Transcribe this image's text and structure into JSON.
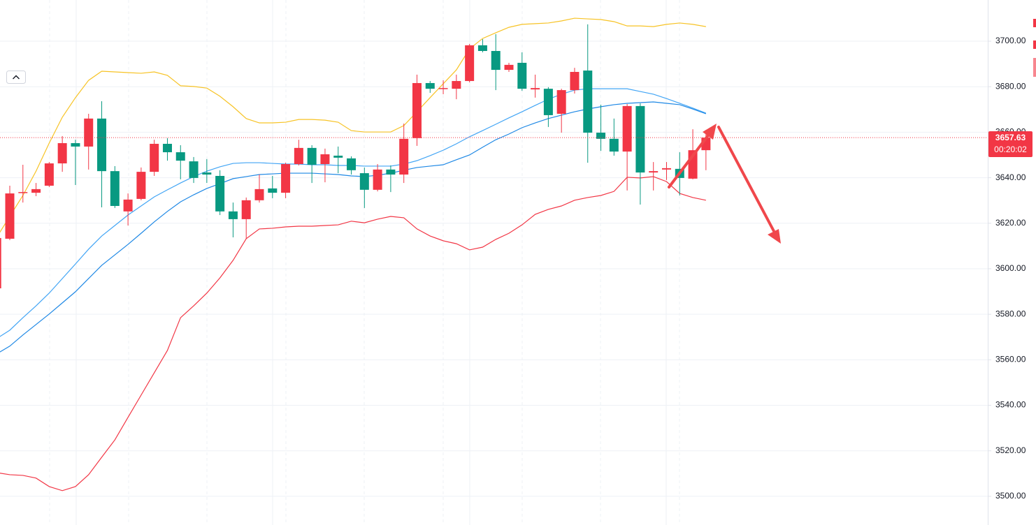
{
  "chart_data": {
    "type": "candlestick",
    "ylim": [
      3487.4,
      3718.1
    ],
    "yticks": [
      {
        "value": 3500,
        "label": "3500.00"
      },
      {
        "value": 3520,
        "label": "3520.00"
      },
      {
        "value": 3540,
        "label": "3540.00"
      },
      {
        "value": 3560,
        "label": "3560.00"
      },
      {
        "value": 3580,
        "label": "3580.00"
      },
      {
        "value": 3600,
        "label": "3600.00"
      },
      {
        "value": 3620,
        "label": "3620.00"
      },
      {
        "value": 3640,
        "label": "3640.00"
      },
      {
        "value": 3660,
        "label": "3660.00"
      },
      {
        "value": 3680,
        "label": "3680.00"
      },
      {
        "value": 3700,
        "label": "3700.00"
      }
    ],
    "grid": true,
    "up_color": "#f23645",
    "down_color": "#089981",
    "open": [
      3591.4,
      3613.2,
      3633.4,
      3633.4,
      3636.5,
      3646.3,
      3655.2,
      3653.7,
      3666.0,
      3642.9,
      3625.2,
      3630.7,
      3642.6,
      3654.9,
      3651.2,
      3647.2,
      3642.3,
      3640.8,
      3625.2,
      3621.8,
      3630.1,
      3635.3,
      3633.4,
      3646.0,
      3653.1,
      3646.0,
      3649.7,
      3648.5,
      3642.0,
      3634.7,
      3643.6,
      3641.4,
      3657.4,
      3681.6,
      3679.1,
      3679.1,
      3682.5,
      3698.2,
      3695.7,
      3687.4,
      3690.5,
      3678.8,
      3679.1,
      3668.1,
      3678.5,
      3687.1,
      3659.8,
      3657.1,
      3651.5,
      3671.5,
      3642.3,
      3643.6,
      3643.9,
      3639.6,
      3652.1
    ],
    "high": [
      3614.0,
      3636.5,
      3645.7,
      3637.7,
      3646.9,
      3658.3,
      3656.7,
      3668.1,
      3673.6,
      3645.1,
      3633.1,
      3644.5,
      3656.7,
      3657.4,
      3654.3,
      3649.1,
      3648.2,
      3643.3,
      3629.1,
      3631.3,
      3641.4,
      3640.8,
      3646.6,
      3656.7,
      3654.3,
      3652.8,
      3653.7,
      3649.4,
      3644.5,
      3646.0,
      3645.4,
      3663.8,
      3685.3,
      3682.5,
      3682.8,
      3685.3,
      3698.8,
      3700.9,
      3703.1,
      3690.5,
      3695.1,
      3685.3,
      3679.8,
      3679.1,
      3688.3,
      3707.4,
      3672.1,
      3666.0,
      3672.4,
      3672.7,
      3646.9,
      3646.9,
      3651.2,
      3661.3,
      3661.0
    ],
    "low": [
      3590.0,
      3612.6,
      3629.1,
      3631.9,
      3635.9,
      3642.6,
      3636.8,
      3643.6,
      3627.0,
      3626.7,
      3619.0,
      3630.1,
      3640.8,
      3647.5,
      3639.3,
      3637.7,
      3637.7,
      3623.6,
      3613.8,
      3613.2,
      3629.1,
      3631.0,
      3631.0,
      3645.4,
      3637.7,
      3638.0,
      3642.0,
      3641.4,
      3626.7,
      3634.0,
      3633.7,
      3637.7,
      3654.0,
      3677.3,
      3676.7,
      3674.5,
      3681.9,
      3695.1,
      3678.5,
      3686.5,
      3678.2,
      3675.2,
      3662.3,
      3659.8,
      3677.0,
      3646.6,
      3651.8,
      3649.7,
      3634.4,
      3628.2,
      3634.4,
      3639.0,
      3632.2,
      3639.3,
      3643.3
    ],
    "close": [
      3613.5,
      3633.1,
      3633.7,
      3635.0,
      3646.3,
      3655.2,
      3653.7,
      3666.0,
      3642.9,
      3627.6,
      3630.4,
      3642.6,
      3654.9,
      3651.2,
      3647.5,
      3639.9,
      3641.4,
      3625.2,
      3621.8,
      3630.1,
      3635.0,
      3633.4,
      3646.0,
      3653.1,
      3645.7,
      3650.3,
      3648.8,
      3643.3,
      3634.7,
      3643.6,
      3641.4,
      3657.1,
      3681.6,
      3679.1,
      3679.4,
      3682.5,
      3698.2,
      3695.7,
      3687.4,
      3689.6,
      3679.1,
      3679.4,
      3667.5,
      3678.5,
      3686.5,
      3659.8,
      3657.1,
      3651.5,
      3671.5,
      3642.3,
      3642.9,
      3644.2,
      3639.9,
      3652.1,
      3657.6
    ],
    "lines": [
      {
        "color": "#f7c325",
        "values": [
          3613.8,
          3623.0,
          3632.2,
          3642.9,
          3655.2,
          3666.6,
          3675.2,
          3682.8,
          3686.8,
          3686.5,
          3686.2,
          3685.9,
          3686.5,
          3685.0,
          3680.4,
          3680.1,
          3679.4,
          3675.8,
          3671.2,
          3666.0,
          3664.1,
          3664.1,
          3664.4,
          3665.6,
          3665.6,
          3665.3,
          3664.4,
          3660.7,
          3660.1,
          3660.1,
          3660.1,
          3662.9,
          3669.0,
          3675.2,
          3681.3,
          3687.4,
          3696.6,
          3701.2,
          3703.7,
          3706.1,
          3707.4,
          3707.7,
          3708.0,
          3708.9,
          3710.1,
          3709.8,
          3709.5,
          3708.6,
          3706.7,
          3706.7,
          3706.4,
          3707.4,
          3708.0,
          3707.4,
          3706.4
        ]
      },
      {
        "color": "#f23645",
        "values": [
          3510.4,
          3509.5,
          3509.2,
          3508.0,
          3504.3,
          3502.5,
          3504.3,
          3509.5,
          3517.2,
          3524.8,
          3534.7,
          3544.5,
          3554.3,
          3564.1,
          3578.5,
          3583.7,
          3589.3,
          3596.0,
          3603.7,
          3613.2,
          3617.5,
          3617.8,
          3618.4,
          3618.7,
          3618.7,
          3619.0,
          3619.3,
          3620.9,
          3620.2,
          3621.8,
          3623.0,
          3622.4,
          3617.5,
          3614.4,
          3612.3,
          3611.0,
          3608.3,
          3609.5,
          3612.9,
          3615.6,
          3619.3,
          3623.9,
          3626.1,
          3627.6,
          3630.1,
          3631.3,
          3632.2,
          3634.0,
          3640.2,
          3639.9,
          3640.5,
          3638.3,
          3633.1,
          3631.3,
          3630.1
        ]
      },
      {
        "color": "#42a5f5",
        "values": [
          3569.3,
          3573.0,
          3578.5,
          3583.7,
          3589.3,
          3595.7,
          3602.1,
          3608.6,
          3614.4,
          3619.0,
          3623.6,
          3627.6,
          3631.6,
          3634.7,
          3637.7,
          3640.5,
          3642.9,
          3644.8,
          3646.3,
          3646.6,
          3646.6,
          3646.3,
          3646.0,
          3646.0,
          3645.7,
          3645.7,
          3645.4,
          3645.4,
          3645.1,
          3645.1,
          3645.1,
          3646.0,
          3647.5,
          3649.7,
          3652.1,
          3654.9,
          3658.0,
          3660.7,
          3663.5,
          3666.3,
          3669.0,
          3671.8,
          3674.5,
          3676.7,
          3678.5,
          3679.1,
          3679.1,
          3679.1,
          3679.1,
          3677.9,
          3676.7,
          3674.8,
          3672.7,
          3670.6,
          3668.4
        ]
      },
      {
        "color": "#1e88e5",
        "values": [
          3562.6,
          3566.0,
          3570.9,
          3575.5,
          3580.1,
          3585.0,
          3589.9,
          3595.7,
          3601.5,
          3606.1,
          3610.7,
          3615.6,
          3620.6,
          3625.2,
          3629.4,
          3632.5,
          3635.3,
          3637.4,
          3639.6,
          3640.5,
          3641.4,
          3641.7,
          3642.0,
          3642.0,
          3642.0,
          3641.7,
          3641.4,
          3640.8,
          3640.5,
          3641.1,
          3642.0,
          3643.3,
          3644.5,
          3645.1,
          3645.7,
          3647.9,
          3650.0,
          3653.4,
          3656.7,
          3659.2,
          3662.0,
          3664.1,
          3666.0,
          3667.5,
          3669.0,
          3670.2,
          3671.2,
          3672.1,
          3672.7,
          3673.0,
          3673.3,
          3672.7,
          3672.1,
          3670.2,
          3668.1
        ]
      }
    ],
    "last_price": 3657.63,
    "countdown": "00:20:02"
  }
}
